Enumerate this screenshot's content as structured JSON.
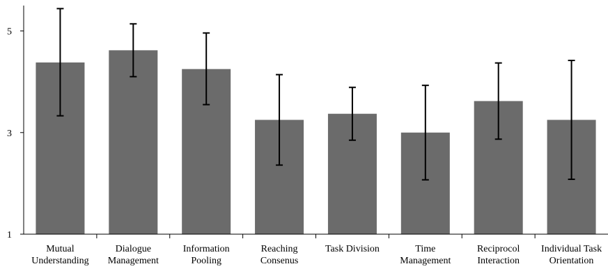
{
  "chart_data": {
    "type": "bar",
    "title": "",
    "xlabel": "",
    "ylabel": "",
    "ylim": [
      1,
      5.5
    ],
    "yticks": [
      "1",
      "3",
      "5"
    ],
    "ytick_values": [
      1,
      3,
      5
    ],
    "grid": false,
    "categories": [
      [
        "Mutual",
        "Understanding"
      ],
      [
        "Dialogue",
        "Management"
      ],
      [
        "Information",
        "Pooling"
      ],
      [
        "Reaching",
        "Consenus"
      ],
      [
        "Task Division"
      ],
      [
        "Time",
        "Management"
      ],
      [
        "Reciprocol",
        "Interaction"
      ],
      [
        "Individual Task",
        "Orientation"
      ]
    ],
    "values": [
      4.38,
      4.62,
      4.25,
      3.25,
      3.37,
      3.0,
      3.62,
      3.25
    ],
    "error_low": [
      3.33,
      4.1,
      3.55,
      2.36,
      2.85,
      2.07,
      2.87,
      2.08
    ],
    "error_high": [
      5.44,
      5.14,
      4.96,
      4.14,
      3.89,
      3.93,
      4.37,
      4.42
    ],
    "colors": {
      "bar": "#6b6b6b",
      "error": "#000000",
      "axis": "#000000"
    }
  }
}
